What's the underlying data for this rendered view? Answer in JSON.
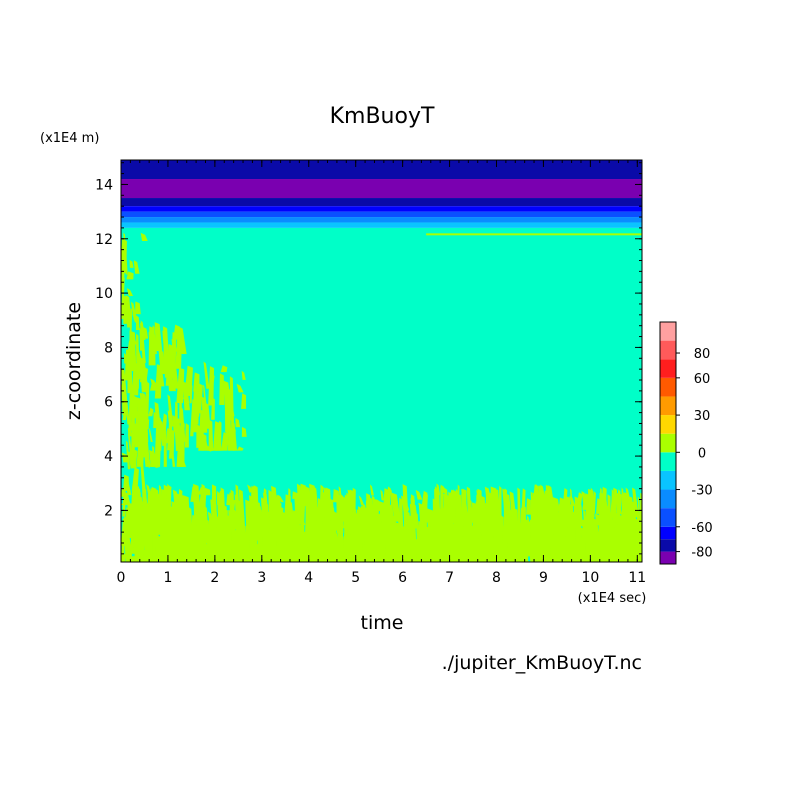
{
  "chart_data": {
    "type": "heatmap",
    "title": "KmBuoyT",
    "xlabel": "time",
    "ylabel": "z-coordinate",
    "x_unit_label": "(x1E4 sec)",
    "y_unit_label": "(x1E4 m)",
    "footer": "./jupiter_KmBuoyT.nc",
    "xlim": [
      0,
      11.1
    ],
    "ylim": [
      0.1,
      14.9
    ],
    "x_ticks": [
      "0",
      "1",
      "2",
      "3",
      "4",
      "5",
      "6",
      "7",
      "8",
      "9",
      "10",
      "11"
    ],
    "y_ticks": [
      "2",
      "4",
      "6",
      "8",
      "10",
      "12",
      "14"
    ],
    "colorbar": {
      "tick_labels": [
        "80",
        "60",
        "30",
        "0",
        "-30",
        "-60",
        "-80"
      ],
      "levels": [
        {
          "lower": -90,
          "upper": -80,
          "color": "#7a00b0"
        },
        {
          "lower": -80,
          "upper": -70,
          "color": "#0a0aa8"
        },
        {
          "lower": -70,
          "upper": -60,
          "color": "#0000ff"
        },
        {
          "lower": -60,
          "upper": -45,
          "color": "#0a50ff"
        },
        {
          "lower": -45,
          "upper": -30,
          "color": "#0a8cff"
        },
        {
          "lower": -30,
          "upper": -15,
          "color": "#0ac4ff"
        },
        {
          "lower": -15,
          "upper": 0,
          "color": "#00ffc8"
        },
        {
          "lower": 0,
          "upper": 15,
          "color": "#aaff00"
        },
        {
          "lower": 15,
          "upper": 30,
          "color": "#ffd800"
        },
        {
          "lower": 30,
          "upper": 45,
          "color": "#ff9b00"
        },
        {
          "lower": 45,
          "upper": 60,
          "color": "#ff5a00"
        },
        {
          "lower": 60,
          "upper": 75,
          "color": "#ff1e1e"
        },
        {
          "lower": 75,
          "upper": 90,
          "color": "#ff5a5a"
        },
        {
          "lower": 90,
          "upper": 105,
          "color": "#ffa0a0"
        }
      ]
    },
    "horizontal_bands": [
      {
        "z_min": 14.2,
        "z_max": 14.9,
        "color": "#0a0aa8"
      },
      {
        "z_min": 13.5,
        "z_max": 14.2,
        "color": "#7a00b0"
      },
      {
        "z_min": 13.2,
        "z_max": 13.5,
        "color": "#0a0aa8"
      },
      {
        "z_min": 13.0,
        "z_max": 13.2,
        "color": "#0000ff"
      },
      {
        "z_min": 12.8,
        "z_max": 13.0,
        "color": "#0a50ff"
      },
      {
        "z_min": 12.6,
        "z_max": 12.8,
        "color": "#0a8cff"
      },
      {
        "z_min": 12.4,
        "z_max": 12.6,
        "color": "#0ac4ff"
      },
      {
        "z_min": 0.1,
        "z_max": 12.4,
        "color": "#00ffc8"
      }
    ],
    "positive_regions": [
      {
        "t_min": 0.0,
        "t_max": 0.45,
        "z_min": 2.2,
        "z_max": 12.3
      },
      {
        "t_min": 0.3,
        "t_max": 1.3,
        "z_min": 3.6,
        "z_max": 9.0
      },
      {
        "t_min": 1.3,
        "t_max": 2.6,
        "z_min": 4.2,
        "z_max": 7.5
      },
      {
        "t_min": 0.0,
        "t_max": 11.1,
        "z_min": 0.1,
        "z_max": 3.0
      }
    ]
  }
}
